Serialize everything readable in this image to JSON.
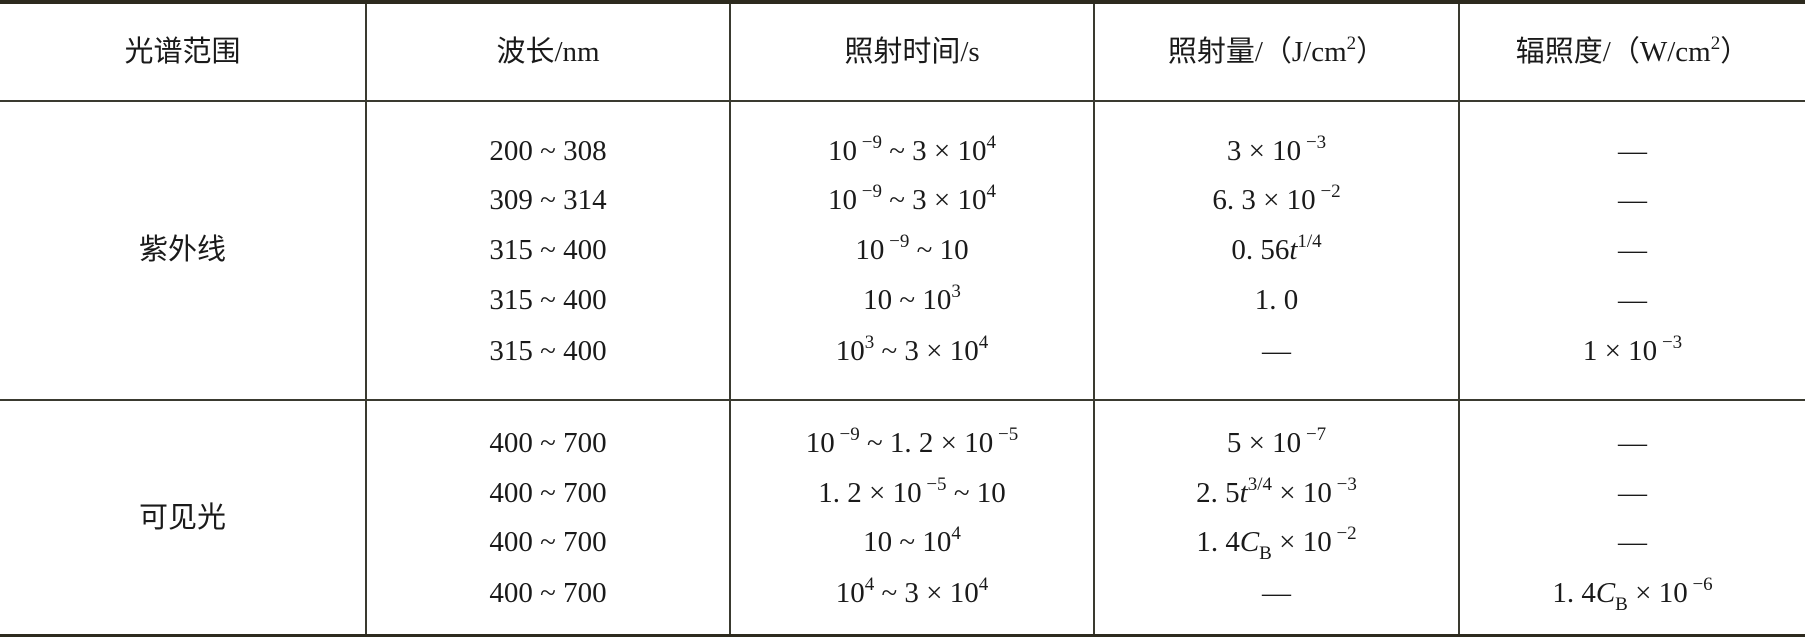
{
  "table": {
    "headers": [
      [
        {
          "t": "光谱范围"
        }
      ],
      [
        {
          "t": "波长/nm"
        }
      ],
      [
        {
          "t": "照射时间/s"
        }
      ],
      [
        {
          "t": "照射量/（J/cm"
        },
        {
          "sup": "2"
        },
        {
          "t": "）"
        }
      ],
      [
        {
          "t": "辐照度/（W/cm"
        },
        {
          "sup": "2"
        },
        {
          "t": "）"
        }
      ]
    ],
    "groups": [
      {
        "name": "紫外线",
        "rows": [
          {
            "wavelength": [
              {
                "t": "200 ~ 308"
              }
            ],
            "time": [
              {
                "t": "10"
              },
              {
                "sup": " −9"
              },
              {
                "t": " ~ 3 × 10"
              },
              {
                "sup": "4"
              }
            ],
            "exposure": [
              {
                "t": "3 × 10"
              },
              {
                "sup": " −3"
              }
            ],
            "irradiance": [
              {
                "t": "—"
              }
            ]
          },
          {
            "wavelength": [
              {
                "t": "309 ~ 314"
              }
            ],
            "time": [
              {
                "t": "10"
              },
              {
                "sup": " −9"
              },
              {
                "t": " ~ 3 × 10"
              },
              {
                "sup": "4"
              }
            ],
            "exposure": [
              {
                "t": "6. 3 × 10"
              },
              {
                "sup": " −2"
              }
            ],
            "irradiance": [
              {
                "t": "—"
              }
            ]
          },
          {
            "wavelength": [
              {
                "t": "315 ~ 400"
              }
            ],
            "time": [
              {
                "t": "10"
              },
              {
                "sup": " −9"
              },
              {
                "t": " ~ 10"
              }
            ],
            "exposure": [
              {
                "t": "0. 56"
              },
              {
                "i": "t"
              },
              {
                "sup": "1/4"
              }
            ],
            "irradiance": [
              {
                "t": "—"
              }
            ]
          },
          {
            "wavelength": [
              {
                "t": "315 ~ 400"
              }
            ],
            "time": [
              {
                "t": "10 ~ 10"
              },
              {
                "sup": "3"
              }
            ],
            "exposure": [
              {
                "t": "1. 0"
              }
            ],
            "irradiance": [
              {
                "t": "—"
              }
            ]
          },
          {
            "wavelength": [
              {
                "t": "315 ~ 400"
              }
            ],
            "time": [
              {
                "t": "10"
              },
              {
                "sup": "3"
              },
              {
                "t": " ~ 3 × 10"
              },
              {
                "sup": "4"
              }
            ],
            "exposure": [
              {
                "t": "—"
              }
            ],
            "irradiance": [
              {
                "t": "1 × 10"
              },
              {
                "sup": " −3"
              }
            ]
          }
        ]
      },
      {
        "name": "可见光",
        "rows": [
          {
            "wavelength": [
              {
                "t": "400 ~ 700"
              }
            ],
            "time": [
              {
                "t": "10"
              },
              {
                "sup": " −9"
              },
              {
                "t": " ~ 1. 2 × 10"
              },
              {
                "sup": " −5"
              }
            ],
            "exposure": [
              {
                "t": "5 × 10"
              },
              {
                "sup": " −7"
              }
            ],
            "irradiance": [
              {
                "t": "—"
              }
            ]
          },
          {
            "wavelength": [
              {
                "t": "400 ~ 700"
              }
            ],
            "time": [
              {
                "t": "1. 2 × 10"
              },
              {
                "sup": " −5"
              },
              {
                "t": " ~ 10"
              }
            ],
            "exposure": [
              {
                "t": "2. 5"
              },
              {
                "i": "t"
              },
              {
                "sup": "3/4"
              },
              {
                "t": " × 10"
              },
              {
                "sup": " −3"
              }
            ],
            "irradiance": [
              {
                "t": "—"
              }
            ]
          },
          {
            "wavelength": [
              {
                "t": "400 ~ 700"
              }
            ],
            "time": [
              {
                "t": "10 ~ 10"
              },
              {
                "sup": "4"
              }
            ],
            "exposure": [
              {
                "t": "1. 4"
              },
              {
                "i": "C"
              },
              {
                "sub": "B"
              },
              {
                "t": " × 10"
              },
              {
                "sup": " −2"
              }
            ],
            "irradiance": [
              {
                "t": "—"
              }
            ]
          },
          {
            "wavelength": [
              {
                "t": "400 ~ 700"
              }
            ],
            "time": [
              {
                "t": "10"
              },
              {
                "sup": "4"
              },
              {
                "t": " ~ 3 × 10"
              },
              {
                "sup": "4"
              }
            ],
            "exposure": [
              {
                "t": "—"
              }
            ],
            "irradiance": [
              {
                "t": "1. 4"
              },
              {
                "i": "C"
              },
              {
                "sub": "B"
              },
              {
                "t": " × 10"
              },
              {
                "sup": " −6"
              }
            ]
          }
        ]
      }
    ]
  }
}
